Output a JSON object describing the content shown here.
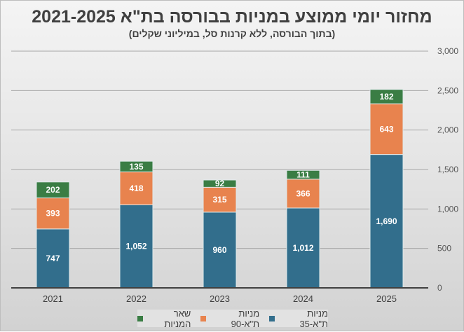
{
  "chart_data": {
    "type": "bar",
    "stacked": true,
    "title": "מחזור יומי ממוצע במניות בבורסה בת\"א 2021-2025",
    "subtitle": "(בתוך הבורסה, ללא קרנות סל, במיליוני שקלים)",
    "xlabel": "",
    "ylabel": "",
    "categories": [
      "2021",
      "2022",
      "2023",
      "2024",
      "2025"
    ],
    "series": [
      {
        "name": "מניות ת\"א-35",
        "color": "#326e8c",
        "values": [
          747,
          1052,
          960,
          1012,
          1690
        ],
        "labels": [
          "747",
          "1,052",
          "960",
          "1,012",
          "1,690"
        ]
      },
      {
        "name": "מניות ת\"א-90",
        "color": "#e8834e",
        "values": [
          393,
          418,
          315,
          366,
          643
        ],
        "labels": [
          "393",
          "418",
          "315",
          "366",
          "643"
        ]
      },
      {
        "name": "שאר המניות",
        "color": "#3a7d44",
        "values": [
          202,
          135,
          92,
          111,
          182
        ],
        "labels": [
          "202",
          "135",
          "92",
          "111",
          "182"
        ]
      }
    ],
    "ylim": [
      0,
      3000
    ],
    "yticks": [
      0,
      500,
      1000,
      1500,
      2000,
      2500,
      3000
    ],
    "ytick_labels": [
      "0",
      "500",
      "1,000",
      "1,500",
      "2,000",
      "2,500",
      "3,000"
    ],
    "y_axis_side": "right",
    "grid": true,
    "legend_position": "bottom"
  }
}
